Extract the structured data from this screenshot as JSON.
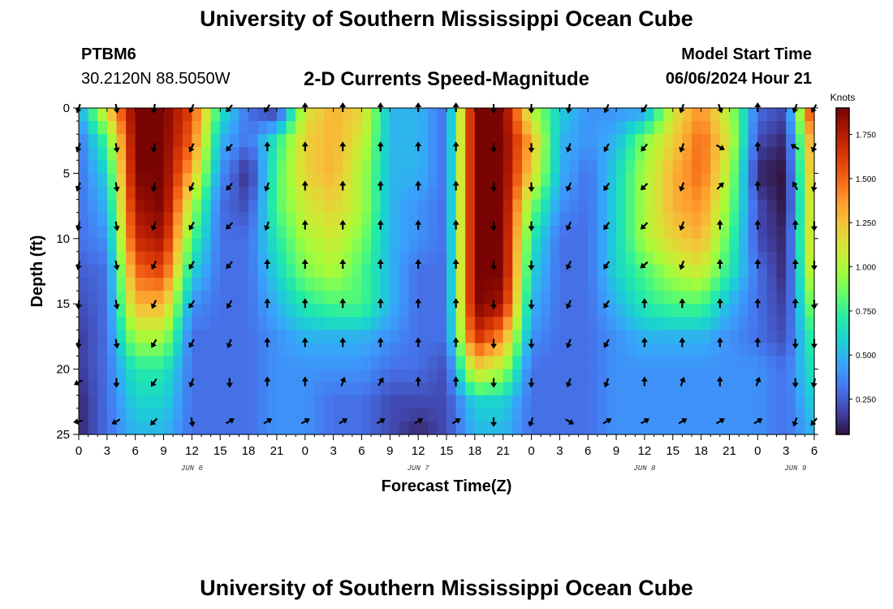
{
  "header": {
    "title": "University of Southern Mississippi Ocean Cube",
    "station": "PTBM6",
    "coords": "30.2120N  88.5050W",
    "subtitle": "2-D Currents Speed-Magnitude",
    "model_start_label": "Model Start Time",
    "model_start_value": "06/06/2024 Hour 21"
  },
  "footer": {
    "title": "University of Southern Mississippi Ocean Cube"
  },
  "colors": {
    "stops": [
      "#30123b",
      "#4145ab",
      "#4675ed",
      "#39a2fc",
      "#1bcfd4",
      "#24eca6",
      "#61fc6c",
      "#a4fc3b",
      "#d1e834",
      "#f3c63a",
      "#fe9b2d",
      "#f36315",
      "#d93806",
      "#b11901",
      "#7a0403"
    ]
  },
  "chart_data": {
    "type": "heatmap",
    "title": "2-D Currents Speed-Magnitude",
    "xlabel": "Forecast Time(Z)",
    "ylabel": "Depth (ft)",
    "x_range_hours": [
      0,
      78
    ],
    "x_tick_hours": [
      0,
      3,
      6,
      9,
      12,
      15,
      18,
      21,
      24,
      27,
      30,
      33,
      36,
      39,
      42,
      45,
      48,
      51,
      54,
      57,
      60,
      63,
      66,
      69,
      72,
      75,
      78
    ],
    "x_tick_labels": [
      "0",
      "3",
      "6",
      "9",
      "12",
      "15",
      "18",
      "21",
      "0",
      "3",
      "6",
      "9",
      "12",
      "15",
      "18",
      "21",
      "0",
      "3",
      "6",
      "9",
      "12",
      "15",
      "18",
      "21",
      "0",
      "3",
      "6"
    ],
    "day_labels": [
      {
        "hour": 12,
        "text": "JUN 6"
      },
      {
        "hour": 36,
        "text": "JUN 7"
      },
      {
        "hour": 60,
        "text": "JUN 8"
      },
      {
        "hour": 76,
        "text": "JUN 9"
      }
    ],
    "ylim": [
      0,
      25
    ],
    "y_ticks": [
      0,
      5,
      10,
      15,
      20,
      25
    ],
    "colorbar": {
      "units": "Knots",
      "range": [
        0.05,
        1.9
      ],
      "ticks": [
        0.25,
        0.5,
        0.75,
        1.0,
        1.25,
        1.5,
        1.75
      ],
      "tick_labels": [
        "0.250",
        "0.500",
        "0.750",
        "1.000",
        "1.250",
        "1.500",
        "1.750"
      ]
    },
    "time_columns_hours": [
      0,
      3,
      6,
      9,
      12,
      15,
      18,
      21,
      24,
      27,
      30,
      33,
      36,
      39,
      42,
      45,
      48,
      51,
      54,
      57,
      60,
      63,
      66,
      69,
      72,
      75,
      78
    ],
    "depth_rows_ft": [
      0,
      2.5,
      5,
      7.5,
      10,
      12.5,
      15,
      17.5,
      20,
      22.5,
      25
    ],
    "speed_knots": [
      [
        0.45,
        1.2,
        1.9,
        1.9,
        1.6,
        0.7,
        0.3,
        0.1,
        1.1,
        1.3,
        1.2,
        0.5,
        0.5,
        0.3,
        1.9,
        1.9,
        1.0,
        0.6,
        0.4,
        0.4,
        0.4,
        1.1,
        1.4,
        1.0,
        0.3,
        0.2,
        1.8
      ],
      [
        0.3,
        0.8,
        1.9,
        1.9,
        1.5,
        0.5,
        0.3,
        0.7,
        1.2,
        1.3,
        1.1,
        0.5,
        0.5,
        0.3,
        1.9,
        1.9,
        1.3,
        0.5,
        0.4,
        0.5,
        0.9,
        1.2,
        1.5,
        1.1,
        0.2,
        0.1,
        1.5
      ],
      [
        0.3,
        0.6,
        1.9,
        1.9,
        1.3,
        0.4,
        0.1,
        0.8,
        1.2,
        1.3,
        1.0,
        0.5,
        0.5,
        0.3,
        1.9,
        1.9,
        1.2,
        0.5,
        0.3,
        0.6,
        1.0,
        1.3,
        1.5,
        1.0,
        0.1,
        0.05,
        1.4
      ],
      [
        0.3,
        0.5,
        1.8,
        1.9,
        1.0,
        0.3,
        0.2,
        0.8,
        1.1,
        1.2,
        1.0,
        0.5,
        0.4,
        0.3,
        1.9,
        1.9,
        0.9,
        0.4,
        0.3,
        0.6,
        1.0,
        1.3,
        1.4,
        0.9,
        0.2,
        0.05,
        1.3
      ],
      [
        0.3,
        0.4,
        1.7,
        1.8,
        0.8,
        0.3,
        0.3,
        0.7,
        1.0,
        1.1,
        0.9,
        0.5,
        0.4,
        0.3,
        1.9,
        1.9,
        0.7,
        0.3,
        0.3,
        0.6,
        1.0,
        1.2,
        1.3,
        0.8,
        0.2,
        0.1,
        1.3
      ],
      [
        0.25,
        0.3,
        1.5,
        1.6,
        0.6,
        0.3,
        0.3,
        0.6,
        0.9,
        1.0,
        0.8,
        0.5,
        0.3,
        0.3,
        1.9,
        1.9,
        0.6,
        0.3,
        0.3,
        0.6,
        0.8,
        1.0,
        1.1,
        0.7,
        0.3,
        0.1,
        1.2
      ],
      [
        0.2,
        0.3,
        1.3,
        1.3,
        0.4,
        0.3,
        0.3,
        0.5,
        0.7,
        0.8,
        0.8,
        0.5,
        0.3,
        0.3,
        1.9,
        1.8,
        0.5,
        0.3,
        0.3,
        0.5,
        0.7,
        0.8,
        0.8,
        0.5,
        0.3,
        0.15,
        1.0
      ],
      [
        0.15,
        0.3,
        1.0,
        1.0,
        0.3,
        0.3,
        0.3,
        0.4,
        0.5,
        0.5,
        0.5,
        0.4,
        0.3,
        0.3,
        1.7,
        1.4,
        0.4,
        0.3,
        0.3,
        0.4,
        0.5,
        0.5,
        0.5,
        0.4,
        0.3,
        0.2,
        0.8
      ],
      [
        0.15,
        0.3,
        0.7,
        0.7,
        0.3,
        0.3,
        0.3,
        0.4,
        0.4,
        0.4,
        0.4,
        0.3,
        0.3,
        0.2,
        1.2,
        1.0,
        0.3,
        0.3,
        0.3,
        0.4,
        0.4,
        0.4,
        0.4,
        0.4,
        0.4,
        0.3,
        0.7
      ],
      [
        0.1,
        0.3,
        0.6,
        0.6,
        0.3,
        0.3,
        0.3,
        0.4,
        0.4,
        0.3,
        0.3,
        0.2,
        0.2,
        0.2,
        0.6,
        0.6,
        0.3,
        0.3,
        0.3,
        0.4,
        0.4,
        0.4,
        0.4,
        0.4,
        0.4,
        0.3,
        0.6
      ],
      [
        0.1,
        0.3,
        0.5,
        0.5,
        0.3,
        0.3,
        0.3,
        0.4,
        0.4,
        0.3,
        0.3,
        0.2,
        0.1,
        0.2,
        0.5,
        0.5,
        0.3,
        0.3,
        0.3,
        0.4,
        0.4,
        0.4,
        0.4,
        0.4,
        0.4,
        0.3,
        0.5
      ]
    ],
    "vector_times_hours": [
      0,
      4,
      8,
      12,
      16,
      20,
      24,
      28,
      32,
      36,
      40,
      44,
      48,
      52,
      56,
      60,
      64,
      68,
      72,
      76,
      78
    ],
    "vector_depths_ft": [
      0,
      3,
      6,
      9,
      12,
      15,
      18,
      21,
      24
    ],
    "vector_directions_deg": [
      [
        200,
        170,
        190,
        205,
        220,
        215,
        0,
        0,
        0,
        0,
        0,
        180,
        180,
        190,
        205,
        215,
        200,
        160,
        0,
        200,
        210
      ],
      [
        200,
        170,
        190,
        205,
        220,
        0,
        0,
        0,
        0,
        0,
        0,
        180,
        180,
        200,
        210,
        220,
        200,
        120,
        0,
        300,
        200
      ],
      [
        200,
        170,
        195,
        205,
        220,
        200,
        0,
        0,
        0,
        0,
        0,
        180,
        180,
        205,
        215,
        225,
        200,
        45,
        0,
        330,
        190
      ],
      [
        190,
        170,
        200,
        210,
        225,
        200,
        0,
        0,
        0,
        0,
        0,
        180,
        180,
        205,
        215,
        225,
        200,
        0,
        0,
        0,
        180
      ],
      [
        190,
        170,
        205,
        210,
        220,
        0,
        0,
        0,
        0,
        0,
        0,
        180,
        180,
        205,
        215,
        230,
        200,
        0,
        0,
        0,
        180
      ],
      [
        185,
        170,
        205,
        215,
        210,
        0,
        0,
        0,
        0,
        0,
        0,
        180,
        180,
        205,
        215,
        0,
        0,
        0,
        0,
        0,
        180
      ],
      [
        185,
        170,
        210,
        210,
        200,
        0,
        0,
        0,
        0,
        0,
        0,
        180,
        180,
        200,
        210,
        0,
        0,
        0,
        0,
        180,
        180
      ],
      [
        240,
        180,
        215,
        200,
        180,
        0,
        0,
        20,
        30,
        0,
        0,
        180,
        180,
        200,
        200,
        0,
        20,
        0,
        20,
        180,
        190
      ],
      [
        260,
        240,
        225,
        170,
        60,
        60,
        60,
        60,
        60,
        60,
        60,
        180,
        200,
        120,
        60,
        60,
        60,
        60,
        60,
        200,
        220
      ]
    ]
  }
}
